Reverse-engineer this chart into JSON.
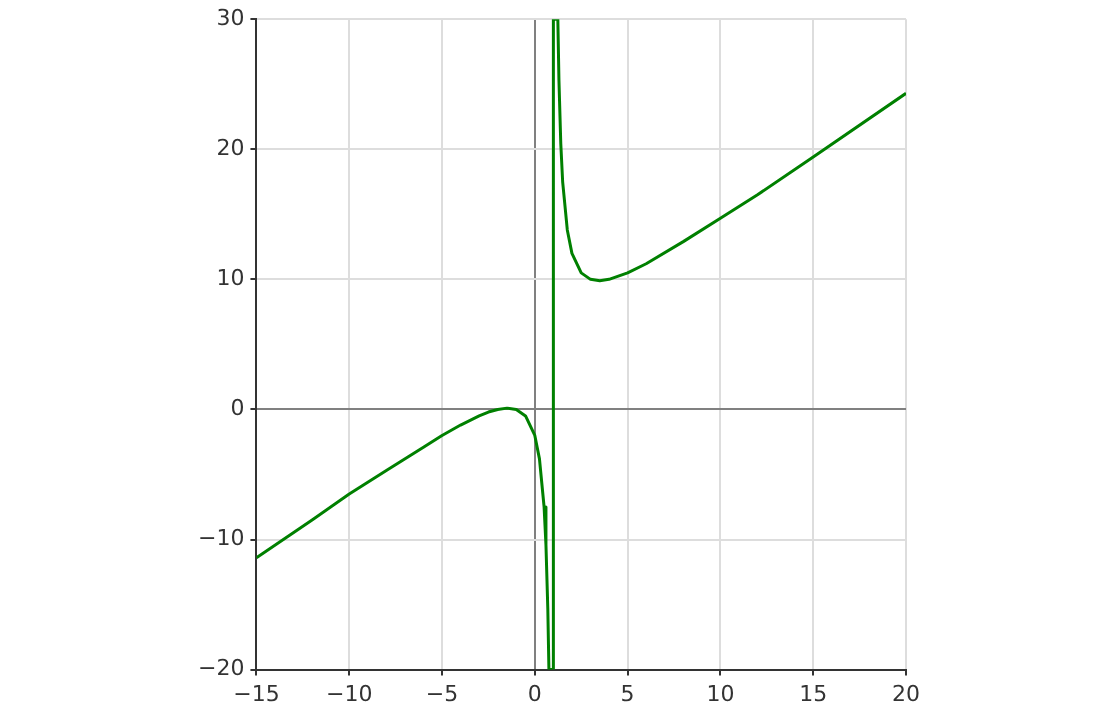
{
  "chart_data": {
    "type": "line",
    "series": [
      {
        "color": "#008000",
        "x": [
          -15,
          -12,
          -10,
          -8,
          -6,
          -5,
          -4,
          -3,
          -2.5,
          -2,
          -1.5,
          -1,
          -0.5,
          0,
          0.25,
          0.5,
          0.6,
          0.7,
          0.76,
          1,
          1,
          1.24,
          1.3,
          1.4,
          1.5,
          1.75,
          2,
          2.5,
          3,
          3.5,
          4,
          5,
          6,
          8,
          10,
          12,
          15,
          20
        ],
        "values": [
          -11.4,
          -8.5,
          -6.5,
          -4.7,
          -2.9,
          -2,
          -1.2,
          -0.5,
          -0.2,
          0,
          0.1,
          0,
          -0.5,
          -2,
          -3.8,
          -7.5,
          -10.4,
          -15.3,
          -20,
          -20,
          30,
          30,
          25.3,
          20.4,
          17.5,
          13.8,
          12,
          10.5,
          10,
          9.9,
          10,
          10.5,
          11.2,
          12.9,
          14.7,
          16.5,
          19.4,
          24.3
        ]
      }
    ],
    "xlim": [
      -15,
      20
    ],
    "ylim": [
      -20,
      30
    ],
    "xticks": [
      {
        "value": -15,
        "label": "−15"
      },
      {
        "value": -10,
        "label": "−10"
      },
      {
        "value": -5,
        "label": "−5"
      },
      0,
      5,
      10,
      15,
      20
    ],
    "yticks": [
      {
        "value": -20,
        "label": "−20"
      },
      {
        "value": -10,
        "label": "−10"
      },
      0,
      10,
      20,
      30
    ],
    "grid": true,
    "marker": "none",
    "line_style": "solid"
  }
}
